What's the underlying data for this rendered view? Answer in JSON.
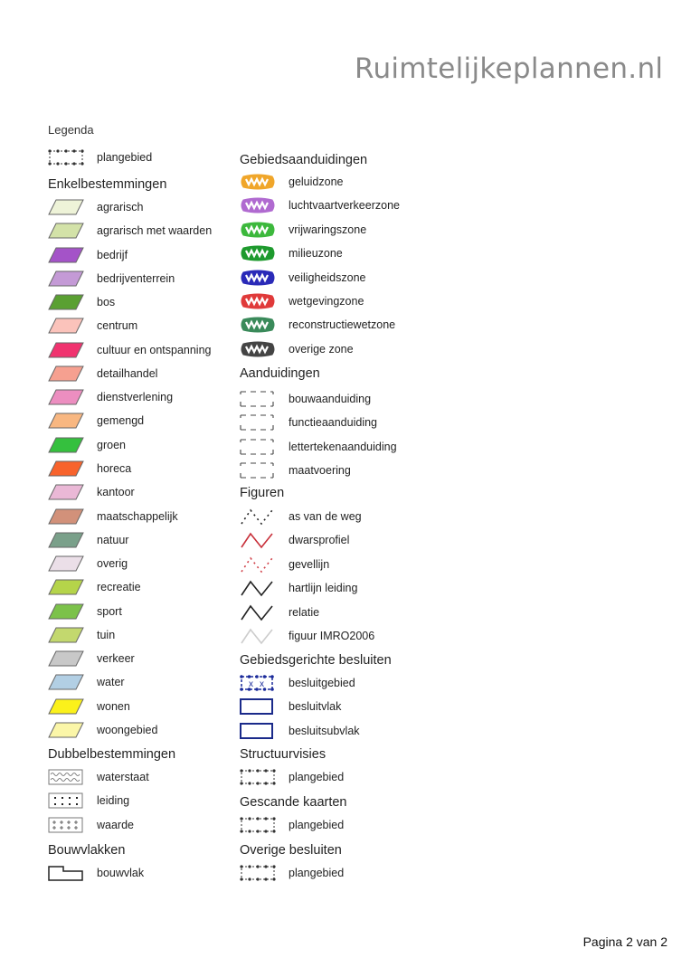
{
  "header": {
    "site_title": "Ruimtelijkeplannen.nl"
  },
  "legend_title": "Legenda",
  "left_column": [
    {
      "heading": null,
      "items": [
        {
          "label": "plangebied",
          "icon": "dotted-box-icon"
        }
      ]
    },
    {
      "heading": "Enkelbestemmingen",
      "items": [
        {
          "label": "agrarisch",
          "icon": "parallelogram-icon",
          "color": "#eef3d8"
        },
        {
          "label": "agrarisch met waarden",
          "icon": "parallelogram-icon",
          "color": "#d3e2a8"
        },
        {
          "label": "bedrijf",
          "icon": "parallelogram-icon",
          "color": "#a453c8"
        },
        {
          "label": "bedrijventerrein",
          "icon": "parallelogram-icon",
          "color": "#c49ad6"
        },
        {
          "label": "bos",
          "icon": "parallelogram-icon",
          "color": "#5aa032"
        },
        {
          "label": "centrum",
          "icon": "parallelogram-icon",
          "color": "#fbc3bb"
        },
        {
          "label": "cultuur en ontspanning",
          "icon": "parallelogram-icon",
          "color": "#f0336f"
        },
        {
          "label": "detailhandel",
          "icon": "parallelogram-icon",
          "color": "#f6a090"
        },
        {
          "label": "dienstverlening",
          "icon": "parallelogram-icon",
          "color": "#ec8ec0"
        },
        {
          "label": "gemengd",
          "icon": "parallelogram-icon",
          "color": "#f8b781"
        },
        {
          "label": "groen",
          "icon": "parallelogram-icon",
          "color": "#35c03e"
        },
        {
          "label": "horeca",
          "icon": "parallelogram-icon",
          "color": "#f8632c"
        },
        {
          "label": "kantoor",
          "icon": "parallelogram-icon",
          "color": "#eab8d6"
        },
        {
          "label": "maatschappelijk",
          "icon": "parallelogram-icon",
          "color": "#d2917a"
        },
        {
          "label": "natuur",
          "icon": "parallelogram-icon",
          "color": "#7aa08a"
        },
        {
          "label": "overig",
          "icon": "parallelogram-icon",
          "color": "#ebdfe8"
        },
        {
          "label": "recreatie",
          "icon": "parallelogram-icon",
          "color": "#b5d44a"
        },
        {
          "label": "sport",
          "icon": "parallelogram-icon",
          "color": "#7cc24a"
        },
        {
          "label": "tuin",
          "icon": "parallelogram-icon",
          "color": "#c3d86e"
        },
        {
          "label": "verkeer",
          "icon": "parallelogram-icon",
          "color": "#c8c8c8"
        },
        {
          "label": "water",
          "icon": "parallelogram-icon",
          "color": "#b2cfe4"
        },
        {
          "label": "wonen",
          "icon": "parallelogram-icon",
          "color": "#fbf11b"
        },
        {
          "label": "woongebied",
          "icon": "parallelogram-icon",
          "color": "#fbf6a8"
        }
      ]
    },
    {
      "heading": "Dubbelbestemmingen",
      "items": [
        {
          "label": "waterstaat",
          "icon": "wave-box-icon"
        },
        {
          "label": "leiding",
          "icon": "dot-grid-box-icon"
        },
        {
          "label": "waarde",
          "icon": "plus-grid-box-icon"
        }
      ]
    },
    {
      "heading": "Bouwvlakken",
      "items": [
        {
          "label": "bouwvlak",
          "icon": "building-plane-icon"
        }
      ]
    }
  ],
  "right_column": [
    {
      "heading": "Gebiedsaanduidingen",
      "items": [
        {
          "label": "geluidzone",
          "icon": "zone-icon",
          "color": "#f0a62a"
        },
        {
          "label": "luchtvaartverkeerzone",
          "icon": "zone-icon",
          "color": "#b06ad0"
        },
        {
          "label": "vrijwaringszone",
          "icon": "zone-icon",
          "color": "#3cb83c"
        },
        {
          "label": "milieuzone",
          "icon": "zone-icon",
          "color": "#1e9a2e"
        },
        {
          "label": "veiligheidszone",
          "icon": "zone-icon",
          "color": "#2a2ab8"
        },
        {
          "label": "wetgevingzone",
          "icon": "zone-icon",
          "color": "#e03a3a"
        },
        {
          "label": "reconstructiewetzone",
          "icon": "zone-icon",
          "color": "#3a8a5a"
        },
        {
          "label": "overige zone",
          "icon": "zone-icon",
          "color": "#444444"
        }
      ]
    },
    {
      "heading": "Aanduidingen",
      "items": [
        {
          "label": "bouwaanduiding",
          "icon": "dashed-box-icon"
        },
        {
          "label": "functieaanduiding",
          "icon": "dashed-box-icon"
        },
        {
          "label": "lettertekenaanduiding",
          "icon": "dashed-box-icon"
        },
        {
          "label": "maatvoering",
          "icon": "dashed-box-icon"
        }
      ]
    },
    {
      "heading": "Figuren",
      "items": [
        {
          "label": "as van de weg",
          "icon": "dotted-zigzag-icon",
          "color": "#222222"
        },
        {
          "label": "dwarsprofiel",
          "icon": "zigzag-icon",
          "color": "#c8303a"
        },
        {
          "label": "gevellijn",
          "icon": "dotted-zigzag-icon",
          "color": "#d04048"
        },
        {
          "label": "hartlijn leiding",
          "icon": "zigzag-icon",
          "color": "#222222"
        },
        {
          "label": "relatie",
          "icon": "zigzag-icon",
          "color": "#222222"
        },
        {
          "label": "figuur IMRO2006",
          "icon": "zigzag-icon",
          "color": "#cccccc"
        }
      ]
    },
    {
      "heading": "Gebiedsgerichte besluiten",
      "items": [
        {
          "label": "besluitgebied",
          "icon": "cross-dotted-box-icon",
          "color": "#1a2a9a"
        },
        {
          "label": "besluitvlak",
          "icon": "outline-box-icon",
          "color": "#1a2a8a"
        },
        {
          "label": "besluitsubvlak",
          "icon": "outline-box-icon",
          "color": "#1a2a8a"
        }
      ]
    },
    {
      "heading": "Structuurvisies",
      "items": [
        {
          "label": "plangebied",
          "icon": "dotted-box-icon"
        }
      ]
    },
    {
      "heading": "Gescande kaarten",
      "items": [
        {
          "label": "plangebied",
          "icon": "dotted-box-icon"
        }
      ]
    },
    {
      "heading": "Overige besluiten",
      "items": [
        {
          "label": "plangebied",
          "icon": "dotted-box-icon"
        }
      ]
    }
  ],
  "footer": {
    "page_label": "Pagina 2 van 2"
  }
}
